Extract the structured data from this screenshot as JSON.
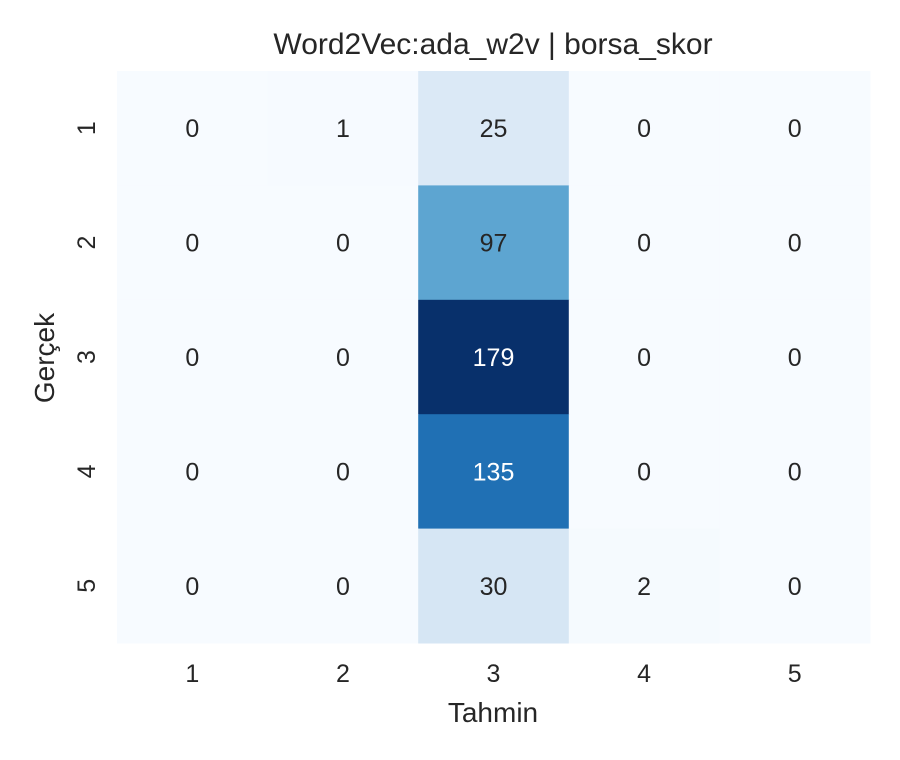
{
  "chart_data": {
    "type": "heatmap",
    "title": "Word2Vec:ada_w2v | borsa_skor",
    "xlabel": "Tahmin",
    "ylabel": "Gerçek",
    "x_categories": [
      "1",
      "2",
      "3",
      "4",
      "5"
    ],
    "y_categories": [
      "1",
      "2",
      "3",
      "4",
      "5"
    ],
    "values": [
      [
        0,
        1,
        25,
        0,
        0
      ],
      [
        0,
        0,
        97,
        0,
        0
      ],
      [
        0,
        0,
        179,
        0,
        0
      ],
      [
        0,
        0,
        135,
        0,
        0
      ],
      [
        0,
        0,
        30,
        2,
        0
      ]
    ],
    "color_scale": "Blues",
    "value_range": [
      0,
      179
    ],
    "grid": false,
    "legend": "none",
    "colors": {
      "low": "#f7fbff",
      "high": "#08306b",
      "text_dark": "#262626",
      "text_light": "#ffffff"
    }
  }
}
